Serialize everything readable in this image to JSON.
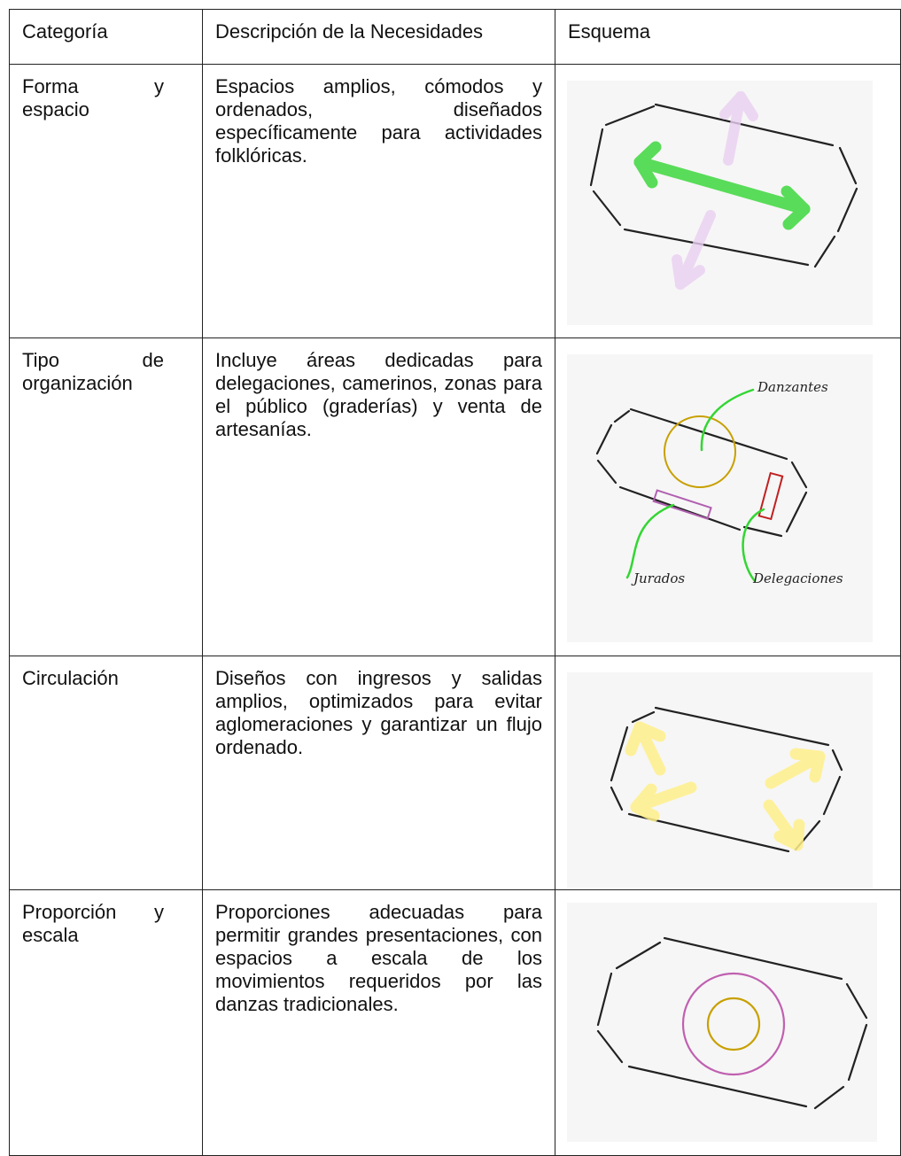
{
  "table": {
    "header": [
      "Categoría",
      "Descripción de la Necesidades",
      "Esquema"
    ],
    "rows": [
      [
        "Forma y espacio",
        "Espacios amplios, cómodos y ordenados, diseñados específicamente para actividades folklóricas."
      ],
      [
        "Tipo de organización",
        "Incluye áreas dedicadas para delegaciones, camerinos, zonas para el público (graderías) y venta de artesanías."
      ],
      [
        "Circulación",
        "Diseños con ingresos y salidas amplios, optimizados para evitar aglomeraciones y garantizar un flujo ordenado."
      ],
      [
        "Proporción y escala",
        "Proporciones adecuadas para permitir grandes presentaciones, con espacios a escala de los movimientos requeridos por las danzas tradicionales."
      ]
    ]
  },
  "sketch_labels": [
    "Danzantes",
    "Jurados",
    "Delegaciones"
  ]
}
